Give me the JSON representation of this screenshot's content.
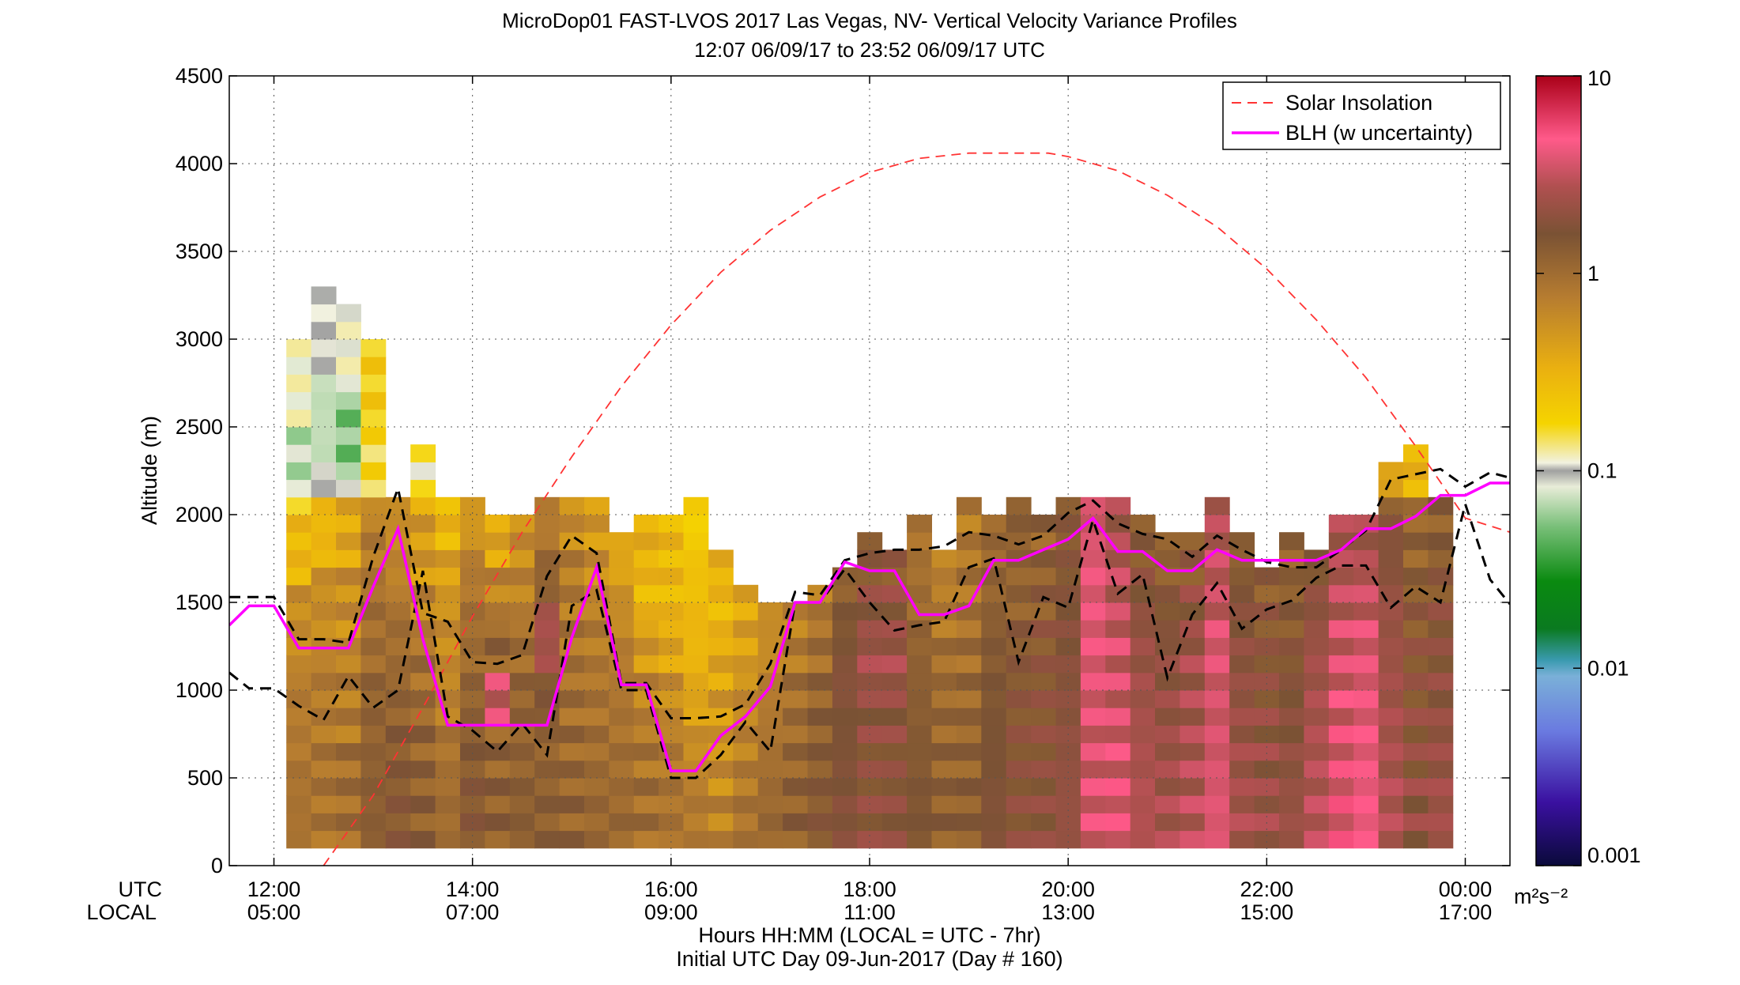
{
  "chart_data": {
    "type": "heatmap",
    "title": "MicroDop01 FAST-LVOS 2017 Las Vegas, NV- Vertical Velocity Variance Profiles",
    "subtitle": "12:07 06/09/17 to 23:52 06/09/17  UTC",
    "ylabel": "Altitude (m)",
    "xlabel": "Hours HH:MM  (LOCAL = UTC - 7hr)",
    "xlabel2": "Initial UTC Day 09-Jun-2017 (Day # 160)",
    "x_row_label_utc": "UTC",
    "x_row_label_local": "LOCAL",
    "xlim_hours_utc": [
      11.55,
      24.45
    ],
    "ylim": [
      0,
      4500
    ],
    "grid": true,
    "y_ticks": [
      "0",
      "500",
      "1000",
      "1500",
      "2000",
      "2500",
      "3000",
      "3500",
      "4000",
      "4500"
    ],
    "x_ticks_utc": [
      "12:00",
      "14:00",
      "16:00",
      "18:00",
      "20:00",
      "22:00",
      "00:00"
    ],
    "x_ticks_local": [
      "05:00",
      "07:00",
      "09:00",
      "11:00",
      "13:00",
      "15:00",
      "17:00"
    ],
    "colorbar": {
      "scale": "log",
      "range": [
        0.001,
        10
      ],
      "tick_labels": [
        "0.001",
        "0.01",
        "0.1",
        "1",
        "10"
      ],
      "unit": "m²s⁻²"
    },
    "legend": {
      "placement": "top-right",
      "entries": [
        "Solar Insolation",
        "BLH (w uncertainty)"
      ]
    },
    "colors": {
      "solar": "#ff3333",
      "blh": "#ff00ff",
      "uncertainty": "#000000"
    },
    "variance_profile_times_utc": [
      12.25,
      12.5,
      12.75,
      13.0,
      13.25,
      13.5,
      13.75,
      14.0,
      14.25,
      14.5,
      14.75,
      15.0,
      15.25,
      15.5,
      15.75,
      16.0,
      16.25,
      16.5,
      16.75,
      17.0,
      17.25,
      17.5,
      17.75,
      18.0,
      18.25,
      18.5,
      18.75,
      19.0,
      19.25,
      19.5,
      19.75,
      20.0,
      20.25,
      20.5,
      20.75,
      21.0,
      21.25,
      21.5,
      21.75,
      22.0,
      22.25,
      22.5,
      22.75,
      23.0,
      23.25,
      23.5,
      23.75
    ],
    "variance_profile_top_m": [
      2950,
      3280,
      3170,
      2950,
      2100,
      2340,
      2060,
      2100,
      2000,
      2000,
      2100,
      2050,
      2080,
      1900,
      1950,
      2000,
      2100,
      1800,
      1600,
      1500,
      1480,
      1600,
      1700,
      1880,
      1800,
      1950,
      1800,
      2050,
      1950,
      2050,
      2000,
      2100,
      2050,
      2050,
      1950,
      1900,
      1900,
      2050,
      1850,
      1700,
      1900,
      1800,
      1950,
      2000,
      2300,
      2350,
      2100
    ],
    "variance_level_m2s2": [
      [
        0.3,
        0.3,
        0.6,
        0.6,
        0.4,
        0.3,
        0.5,
        0.4,
        0.6,
        0.8,
        0.6,
        0.5,
        0.4,
        0.35,
        0.3,
        0.2,
        0.35,
        0.4,
        0.6,
        0.7,
        0.8,
        1.2,
        1.5,
        0.9,
        0.7,
        0.8,
        1.1,
        1.3,
        1.2,
        1.5,
        3.5,
        2.5,
        1.4,
        1.2,
        1.5,
        2.8,
        1.3,
        1.4,
        1.2,
        1.5,
        2.6,
        2.5,
        1.2,
        0.9,
        1.3
      ],
      [
        0.2,
        0.15,
        0.5,
        0.7,
        0.5,
        0.45,
        0.8,
        0.7,
        0.7,
        1.2,
        0.8,
        0.6,
        0.6,
        0.3,
        0.3,
        0.25,
        0.3,
        0.45,
        0.6,
        0.8,
        1.0,
        1.5,
        2.0,
        1.0,
        0.8,
        0.9,
        1.2,
        1.2,
        1.4,
        1.6,
        4.0,
        3.0,
        1.8,
        1.6,
        2.0,
        3.2,
        1.8,
        1.6,
        1.4,
        2.0,
        3.0,
        3.2,
        1.8,
        1.2,
        1.5
      ],
      [
        0.3,
        0.4,
        0.8,
        1.0,
        0.7,
        0.6,
        1.0,
        1.2,
        1.0,
        2.5,
        0.9,
        0.8,
        0.8,
        0.5,
        0.4,
        0.3,
        0.4,
        0.6,
        0.8,
        1.0,
        1.2,
        1.8,
        2.5,
        1.2,
        1.0,
        1.0,
        1.4,
        1.5,
        1.6,
        1.8,
        4.0,
        3.5,
        2.2,
        2.0,
        2.5,
        3.8,
        2.0,
        1.8,
        1.6,
        2.4,
        3.5,
        3.8,
        2.2,
        1.5,
        1.8
      ],
      [
        0.6,
        0.6,
        1.0,
        1.2,
        1.0,
        0.7,
        1.2,
        3.5,
        1.2,
        1.5,
        1.0,
        0.9,
        0.9,
        0.7,
        0.6,
        0.4,
        0.5,
        0.7,
        0.9,
        1.1,
        1.3,
        1.6,
        2.0,
        1.3,
        1.1,
        1.1,
        1.5,
        1.6,
        1.7,
        1.9,
        3.8,
        3.5,
        2.4,
        2.2,
        2.6,
        3.5,
        2.2,
        2.0,
        1.8,
        2.6,
        3.8,
        4.0,
        2.4,
        1.7,
        2.0
      ],
      [
        0.8,
        0.8,
        1.2,
        1.4,
        1.2,
        0.9,
        1.4,
        1.2,
        1.2,
        1.2,
        1.1,
        1.0,
        1.0,
        0.9,
        0.8,
        0.6,
        0.6,
        0.8,
        1.0,
        1.2,
        1.4,
        1.7,
        1.8,
        1.4,
        1.2,
        1.2,
        1.6,
        1.7,
        1.8,
        2.0,
        3.6,
        3.8,
        2.6,
        2.4,
        2.8,
        3.6,
        2.4,
        2.2,
        2.0,
        2.8,
        4.0,
        4.2,
        2.6,
        1.9,
        2.2
      ],
      [
        0.9,
        1.0,
        1.3,
        1.5,
        1.3,
        1.0,
        1.5,
        1.3,
        1.3,
        1.3,
        1.2,
        1.1,
        1.1,
        1.0,
        0.9,
        0.8,
        0.7,
        0.9,
        1.1,
        1.3,
        1.5,
        1.8,
        1.9,
        1.5,
        1.3,
        1.3,
        1.7,
        1.8,
        1.9,
        2.1,
        3.8,
        4.0,
        2.8,
        2.6,
        3.0,
        3.8,
        2.6,
        2.4,
        2.2,
        3.0,
        4.2,
        4.4,
        2.8,
        2.1,
        2.4
      ]
    ],
    "blh": {
      "x_hours_utc": [
        11.55,
        11.75,
        12.0,
        12.25,
        12.5,
        12.75,
        13.0,
        13.25,
        13.5,
        13.75,
        14.0,
        14.25,
        14.5,
        14.75,
        15.0,
        15.25,
        15.5,
        15.75,
        16.0,
        16.25,
        16.5,
        16.75,
        17.0,
        17.25,
        17.5,
        17.75,
        18.0,
        18.25,
        18.5,
        18.75,
        19.0,
        19.25,
        19.5,
        19.75,
        20.0,
        20.25,
        20.5,
        20.75,
        21.0,
        21.25,
        21.5,
        21.75,
        22.0,
        22.25,
        22.5,
        22.75,
        23.0,
        23.25,
        23.5,
        23.75,
        24.0,
        24.25,
        24.45
      ],
      "y_m": [
        1370,
        1480,
        1480,
        1240,
        1240,
        1240,
        1590,
        1920,
        1290,
        800,
        800,
        800,
        800,
        800,
        1300,
        1700,
        1030,
        1030,
        540,
        540,
        740,
        850,
        1020,
        1500,
        1500,
        1730,
        1680,
        1680,
        1430,
        1430,
        1480,
        1740,
        1740,
        1800,
        1860,
        1980,
        1790,
        1790,
        1680,
        1680,
        1800,
        1740,
        1740,
        1740,
        1740,
        1800,
        1920,
        1920,
        1990,
        2110,
        2110,
        2180,
        2180
      ]
    },
    "blh_upper": {
      "x_hours_utc": [
        11.55,
        11.75,
        12.0,
        12.25,
        12.5,
        12.75,
        13.0,
        13.25,
        13.5,
        13.75,
        14.0,
        14.25,
        14.5,
        14.75,
        15.0,
        15.25,
        15.5,
        15.75,
        16.0,
        16.25,
        16.5,
        16.75,
        17.0,
        17.25,
        17.5,
        17.75,
        18.0,
        18.25,
        18.5,
        18.75,
        19.0,
        19.25,
        19.5,
        19.75,
        20.0,
        20.25,
        20.5,
        20.75,
        21.0,
        21.25,
        21.5,
        21.75,
        22.0,
        22.25,
        22.5,
        22.75,
        23.0,
        23.25,
        23.5,
        23.75,
        24.0,
        24.25,
        24.45
      ],
      "y_m": [
        1530,
        1530,
        1530,
        1290,
        1290,
        1270,
        1760,
        2150,
        1440,
        1390,
        1160,
        1150,
        1200,
        1650,
        1880,
        1780,
        1040,
        1040,
        840,
        840,
        850,
        920,
        1150,
        1560,
        1540,
        1740,
        1780,
        1800,
        1800,
        1820,
        1900,
        1880,
        1830,
        1880,
        2010,
        2080,
        1950,
        1890,
        1860,
        1760,
        1880,
        1800,
        1730,
        1700,
        1700,
        1800,
        1910,
        2200,
        2230,
        2260,
        2160,
        2240,
        2210
      ]
    },
    "blh_lower": {
      "x_hours_utc": [
        11.55,
        11.75,
        12.0,
        12.25,
        12.5,
        12.75,
        13.0,
        13.25,
        13.5,
        13.75,
        14.0,
        14.25,
        14.5,
        14.75,
        15.0,
        15.25,
        15.5,
        15.75,
        16.0,
        16.25,
        16.5,
        16.75,
        17.0,
        17.25,
        17.5,
        17.75,
        18.0,
        18.25,
        18.5,
        18.75,
        19.0,
        19.25,
        19.5,
        19.75,
        20.0,
        20.25,
        20.5,
        20.75,
        21.0,
        21.25,
        21.5,
        21.75,
        22.0,
        22.25,
        22.5,
        22.75,
        23.0,
        23.25,
        23.5,
        23.75,
        24.0,
        24.25,
        24.45
      ],
      "y_m": [
        1100,
        1010,
        1010,
        910,
        830,
        1080,
        900,
        1000,
        1680,
        850,
        770,
        650,
        810,
        630,
        1480,
        1570,
        1000,
        1000,
        500,
        500,
        630,
        820,
        650,
        1500,
        1500,
        1690,
        1500,
        1340,
        1370,
        1390,
        1700,
        1750,
        1160,
        1530,
        1470,
        1970,
        1550,
        1660,
        1070,
        1430,
        1610,
        1350,
        1460,
        1510,
        1640,
        1710,
        1710,
        1470,
        1590,
        1500,
        2060,
        1630,
        1490
      ]
    },
    "solar_insolation": {
      "description_curve": "sinusoid",
      "x_hours_utc": [
        12.5,
        13.0,
        13.5,
        14.0,
        14.5,
        15.0,
        15.5,
        16.0,
        16.5,
        17.0,
        17.5,
        18.0,
        18.5,
        19.0,
        19.5,
        19.8,
        20.0,
        20.5,
        21.0,
        21.5,
        22.0,
        22.5,
        23.0,
        23.5,
        24.0,
        24.45
      ],
      "y_m": [
        0,
        400,
        900,
        1420,
        1900,
        2330,
        2730,
        3080,
        3380,
        3620,
        3810,
        3950,
        4030,
        4060,
        4060,
        4060,
        4040,
        3960,
        3820,
        3640,
        3400,
        3110,
        2780,
        2390,
        1980,
        1900
      ]
    }
  }
}
